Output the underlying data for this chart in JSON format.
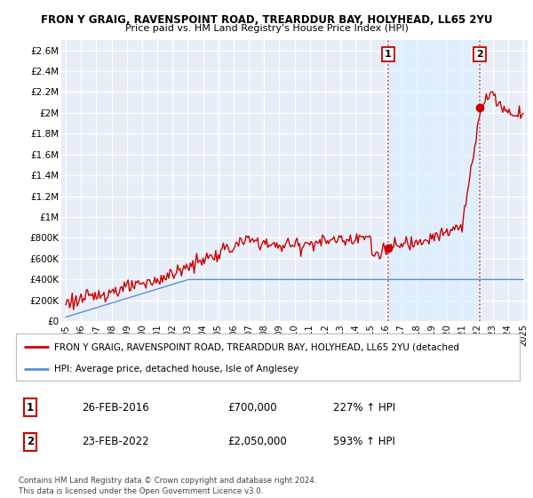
{
  "title1": "FRON Y GRAIG, RAVENSPOINT ROAD, TREARDDUR BAY, HOLYHEAD, LL65 2YU",
  "title2": "Price paid vs. HM Land Registry's House Price Index (HPI)",
  "ylim": [
    0,
    2700000
  ],
  "yticks": [
    0,
    200000,
    400000,
    600000,
    800000,
    1000000,
    1200000,
    1400000,
    1600000,
    1800000,
    2000000,
    2200000,
    2400000,
    2600000
  ],
  "ytick_labels": [
    "£0",
    "£200K",
    "£400K",
    "£600K",
    "£800K",
    "£1M",
    "£1.2M",
    "£1.4M",
    "£1.6M",
    "£1.8M",
    "£2M",
    "£2.2M",
    "£2.4M",
    "£2.6M"
  ],
  "xlim_start": 1994.7,
  "xlim_end": 2025.3,
  "xtick_years": [
    1995,
    1996,
    1997,
    1998,
    1999,
    2000,
    2001,
    2002,
    2003,
    2004,
    2005,
    2006,
    2007,
    2008,
    2009,
    2010,
    2011,
    2012,
    2013,
    2014,
    2015,
    2016,
    2017,
    2018,
    2019,
    2020,
    2021,
    2022,
    2023,
    2024,
    2025
  ],
  "hpi_color": "#5b8fcf",
  "price_color": "#cc0000",
  "marker1_year": 2016.15,
  "marker1_price": 700000,
  "marker2_year": 2022.15,
  "marker2_price": 2050000,
  "marker1_label": "1",
  "marker2_label": "2",
  "vline_color": "#dd4444",
  "shade_color": "#ddeeff",
  "legend_line1": "FRON Y GRAIG, RAVENSPOINT ROAD, TREARDDUR BAY, HOLYHEAD, LL65 2YU (detached",
  "legend_line2": "HPI: Average price, detached house, Isle of Anglesey",
  "table_row1": [
    "1",
    "26-FEB-2016",
    "£700,000",
    "227% ↑ HPI"
  ],
  "table_row2": [
    "2",
    "23-FEB-2022",
    "£2,050,000",
    "593% ↑ HPI"
  ],
  "footer1": "Contains HM Land Registry data © Crown copyright and database right 2024.",
  "footer2": "This data is licensed under the Open Government Licence v3.0.",
  "bg_color": "#ffffff",
  "plot_bg_color": "#e8eef8",
  "grid_color": "#ffffff"
}
